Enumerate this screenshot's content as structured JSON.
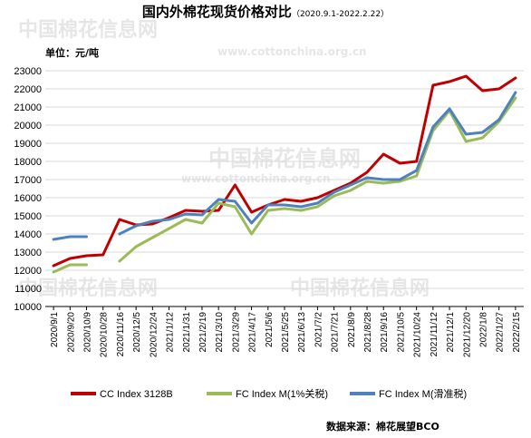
{
  "header": {
    "title": "国内外棉花现货价格对比",
    "subtitle": "（2020.9.1-2022.2.22）"
  },
  "unit_label": "单位：元/吨",
  "source": "数据来源：棉花展望BCO",
  "watermark": {
    "brand": "中国棉花信息网",
    "url": "www.cottonchina.org.cn"
  },
  "colors": {
    "cc": "#c00000",
    "fc1": "#9bbb59",
    "fcs": "#4f81bd",
    "grid": "#d9d9d9",
    "axis": "#000000"
  },
  "chart_data": {
    "type": "line",
    "title": "国内外棉花现货价格对比",
    "ylabel": "单位：元/吨",
    "ylim": [
      10000,
      23000
    ],
    "yticks": [
      10000,
      11000,
      12000,
      13000,
      14000,
      15000,
      16000,
      17000,
      18000,
      19000,
      20000,
      21000,
      22000,
      23000
    ],
    "grid": "horizontal",
    "legend_position": "bottom",
    "x_labels": [
      "2020/9/1",
      "2020/9/20",
      "2020/10/9",
      "2020/10/28",
      "2020/11/16",
      "2020/12/5",
      "2020/12/24",
      "2021/1/12",
      "2021/1/31",
      "2021/2/19",
      "2021/3/10",
      "2021/3/29",
      "2021/4/17",
      "2021/5/6",
      "2021/5/25",
      "2021/6/13",
      "2021/7/2",
      "2021/7/21",
      "2021/8/9",
      "2021/8/28",
      "2021/9/16",
      "2021/10/5",
      "2021/10/24",
      "2021/11/12",
      "2021/12/1",
      "2021/12/20",
      "2022/1/8",
      "2022/1/27",
      "2022/2/15"
    ],
    "series": [
      {
        "name": "CC Index 3128B",
        "color": "#c00000",
        "values": [
          12250,
          12650,
          12800,
          12850,
          14800,
          14500,
          14550,
          14900,
          15300,
          15250,
          15300,
          16700,
          15200,
          15600,
          15900,
          15800,
          16000,
          16400,
          16800,
          17400,
          18400,
          17900,
          18000,
          22200,
          22400,
          22700,
          21900,
          22000,
          22600
        ]
      },
      {
        "name": "FC Index M(1%关税)",
        "color": "#9bbb59",
        "values": [
          11900,
          12300,
          12300,
          null,
          12500,
          13300,
          13800,
          14300,
          14800,
          14600,
          15700,
          15500,
          14000,
          15300,
          15400,
          15300,
          15500,
          16100,
          16400,
          16900,
          16800,
          16900,
          17200,
          19700,
          20800,
          19100,
          19300,
          20200,
          21500
        ]
      },
      {
        "name": "FC Index M(滑准税)",
        "color": "#4f81bd",
        "values": [
          13700,
          13850,
          13850,
          null,
          14000,
          14450,
          14700,
          14800,
          15100,
          15050,
          15900,
          15800,
          14600,
          15600,
          15600,
          15500,
          15700,
          16300,
          16700,
          17100,
          17000,
          17000,
          17500,
          19900,
          20900,
          19500,
          19600,
          20300,
          21800
        ]
      }
    ]
  }
}
